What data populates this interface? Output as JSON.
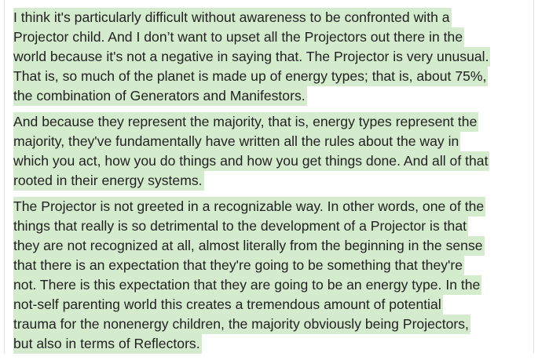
{
  "highlight_color": "#d4ebcd",
  "paragraphs": [
    {
      "lines": [
        "I think it's particularly difficult without awareness to be confronted with a",
        "Projector child. And I don’t want to upset all the Projectors out there in the",
        "world because it's not a negative in saying that. The Projector is very unusual.",
        "That is, so much of the planet is made up of energy types; that is, about 75%,",
        "the combination of Generators and Manifestors."
      ]
    },
    {
      "lines": [
        "And because they represent the majority, that is, energy types represent the",
        "majority, they've fundamentally have written all the rules about the way in",
        "which you act, how you do things and how you get things done. And all of that",
        "rooted in their energy systems."
      ]
    },
    {
      "lines": [
        "The Projector is not greeted in a recognizable way. In other words, one of the",
        "things that really is so detrimental to the development of a Projector is that",
        "they are not recognized at all, almost literally from the beginning in the sense",
        "that there is an expectation that they're going to be something that they're",
        "not. There is this expectation that they are going to be an energy type. In the",
        "not-self parenting world this creates a tremendous amount of potential",
        "trauma for the nonenergy children, the majority obviously being Projectors,",
        "but also in terms of Reflectors."
      ]
    }
  ]
}
